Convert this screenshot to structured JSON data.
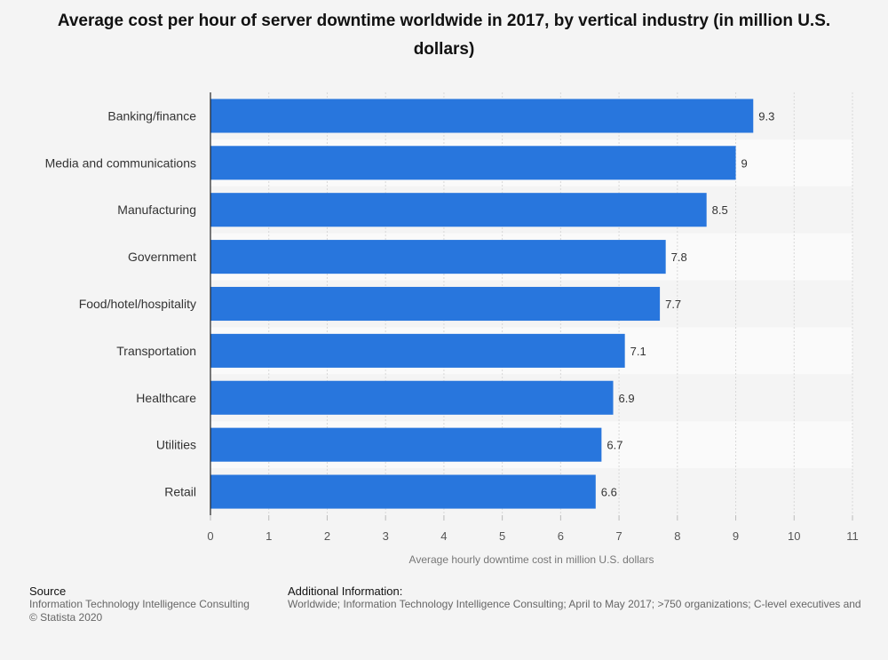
{
  "chart_data": {
    "type": "bar",
    "orientation": "horizontal",
    "title": "Average cost per hour of server downtime worldwide in 2017, by vertical industry (in million U.S. dollars)",
    "categories": [
      "Banking/finance",
      "Media and communications",
      "Manufacturing",
      "Government",
      "Food/hotel/hospitality",
      "Transportation",
      "Healthcare",
      "Utilities",
      "Retail"
    ],
    "values": [
      9.3,
      9,
      8.5,
      7.8,
      7.7,
      7.1,
      6.9,
      6.7,
      6.6
    ],
    "value_labels": [
      "9.3",
      "9",
      "8.5",
      "7.8",
      "7.7",
      "7.1",
      "6.9",
      "6.7",
      "6.6"
    ],
    "xlabel": "Average hourly downtime cost in million U.S. dollars",
    "ylabel": "",
    "xlim": [
      0,
      11
    ],
    "xticks": [
      0,
      1,
      2,
      3,
      4,
      5,
      6,
      7,
      8,
      9,
      10,
      11
    ],
    "grid": true,
    "bar_color": "#2876dd"
  },
  "footer": {
    "source_heading": "Source",
    "source_text": "Information Technology Intelligence Consulting",
    "copyright": "© Statista 2020",
    "additional_heading": "Additional Information:",
    "additional_text": "Worldwide; Information Technology Intelligence Consulting; April to May 2017; >750 organizations; C-level executives and"
  }
}
